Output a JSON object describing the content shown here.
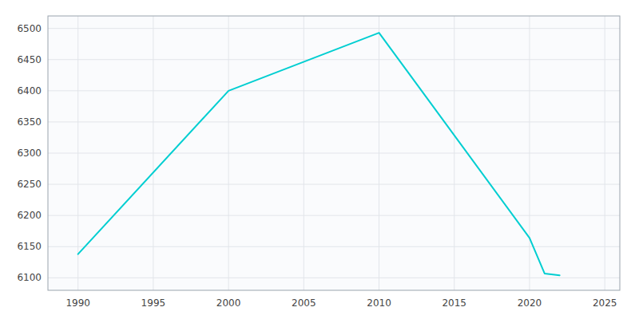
{
  "chart_data": {
    "type": "line",
    "x": [
      1990,
      2000,
      2010,
      2020,
      2021,
      2022
    ],
    "values": [
      6138,
      6400,
      6493,
      6164,
      6107,
      6104
    ],
    "color": "#00CED1",
    "xlim": [
      1988,
      2026
    ],
    "ylim": [
      6080,
      6520
    ],
    "xticks": [
      1990,
      1995,
      2000,
      2005,
      2010,
      2015,
      2020,
      2025
    ],
    "yticks": [
      6100,
      6150,
      6200,
      6250,
      6300,
      6350,
      6400,
      6450,
      6500
    ],
    "grid": true
  }
}
